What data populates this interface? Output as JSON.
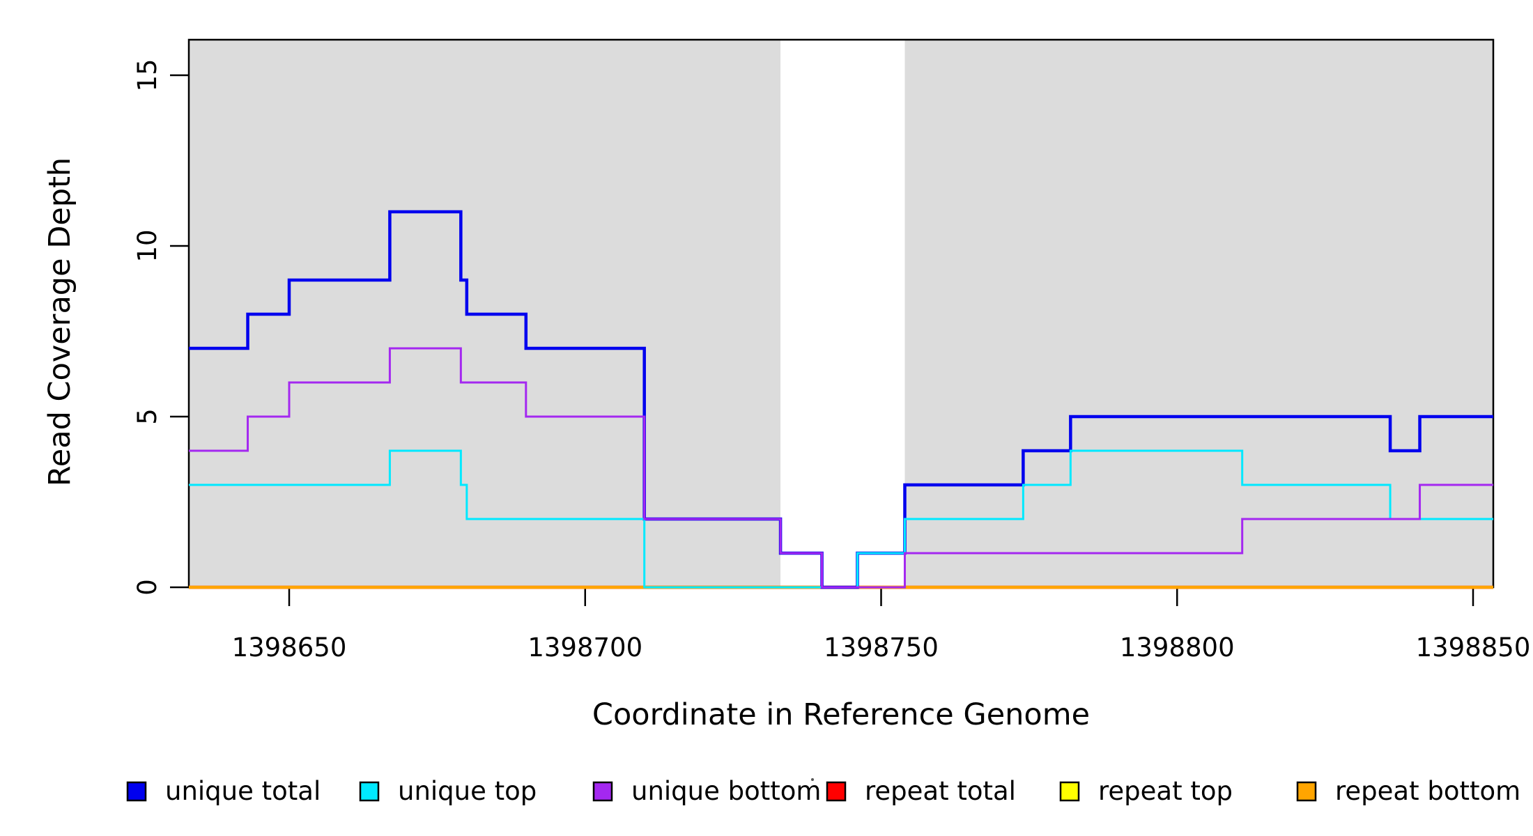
{
  "chart_data": {
    "type": "line",
    "subtype": "step",
    "title": "",
    "xlabel": "Coordinate in Reference Genome",
    "ylabel": "Read Coverage Depth",
    "x_axis": {
      "min_coord": 1398633,
      "max_coord": 1398853.5,
      "ticks": [
        1398650,
        1398700,
        1398750,
        1398800,
        1398850
      ],
      "tick_labels": [
        "1398650",
        "1398700",
        "1398750",
        "1398800",
        "1398850"
      ]
    },
    "y_axis": {
      "min": 0,
      "max": 16,
      "ticks": [
        0,
        5,
        10,
        15
      ],
      "tick_labels": [
        "0",
        "5",
        "10",
        "15"
      ]
    },
    "grid": false,
    "background_bands": [
      {
        "name": "shaded-region-left",
        "from": 1398633,
        "to": 1398733,
        "color": "#DCDCDC"
      },
      {
        "name": "unshaded-gap",
        "from": 1398733,
        "to": 1398754,
        "color": "#FFFFFF"
      },
      {
        "name": "shaded-region-right",
        "from": 1398754,
        "to": 1398853.5,
        "color": "#DCDCDC"
      }
    ],
    "series": [
      {
        "name": "unique total",
        "color": "#0000EE",
        "width": 4.5,
        "start_value": 7,
        "steps": [
          [
            1398643,
            8
          ],
          [
            1398650,
            9
          ],
          [
            1398667,
            11
          ],
          [
            1398679,
            9
          ],
          [
            1398680,
            8
          ],
          [
            1398690,
            7
          ],
          [
            1398710,
            2
          ],
          [
            1398733,
            1
          ],
          [
            1398740,
            0
          ],
          [
            1398746,
            1
          ],
          [
            1398754,
            3
          ],
          [
            1398774,
            4
          ],
          [
            1398782,
            5
          ],
          [
            1398836,
            4
          ],
          [
            1398841,
            5
          ]
        ]
      },
      {
        "name": "unique top",
        "color": "#00E9FF",
        "width": 3,
        "start_value": 3,
        "steps": [
          [
            1398667,
            4
          ],
          [
            1398679,
            3
          ],
          [
            1398680,
            2
          ],
          [
            1398710,
            0
          ],
          [
            1398746,
            1
          ],
          [
            1398754,
            2
          ],
          [
            1398774,
            3
          ],
          [
            1398782,
            4
          ],
          [
            1398811,
            3
          ],
          [
            1398836,
            2
          ]
        ]
      },
      {
        "name": "unique bottom",
        "color": "#A428F0",
        "width": 3,
        "start_value": 4,
        "steps": [
          [
            1398643,
            5
          ],
          [
            1398650,
            6
          ],
          [
            1398667,
            7
          ],
          [
            1398679,
            6
          ],
          [
            1398690,
            5
          ],
          [
            1398710,
            2
          ],
          [
            1398733,
            1
          ],
          [
            1398740,
            0
          ],
          [
            1398754,
            1
          ],
          [
            1398811,
            2
          ],
          [
            1398841,
            3
          ]
        ]
      },
      {
        "name": "repeat total",
        "color": "#FF0000",
        "width": 4.5,
        "start_value": 0,
        "steps": []
      },
      {
        "name": "repeat top",
        "color": "#FFFF00",
        "width": 3,
        "start_value": 0,
        "steps": []
      },
      {
        "name": "repeat bottom",
        "color": "#FFA500",
        "width": 4.5,
        "start_value": 0,
        "steps": []
      }
    ],
    "draw_order": [
      "repeat total",
      "repeat top",
      "repeat bottom",
      "unique total",
      "unique top",
      "unique bottom"
    ],
    "legend": {
      "position": "bottom",
      "items": [
        {
          "label": "unique total",
          "color": "#0000EE"
        },
        {
          "label": "unique top",
          "color": "#00E9FF"
        },
        {
          "label": "unique bottom",
          "color": "#A428F0"
        },
        {
          "label": "repeat total",
          "color": "#FF0000"
        },
        {
          "label": "repeat top",
          "color": "#FFFF00"
        },
        {
          "label": "repeat bottom",
          "color": "#FFA500"
        }
      ]
    }
  }
}
